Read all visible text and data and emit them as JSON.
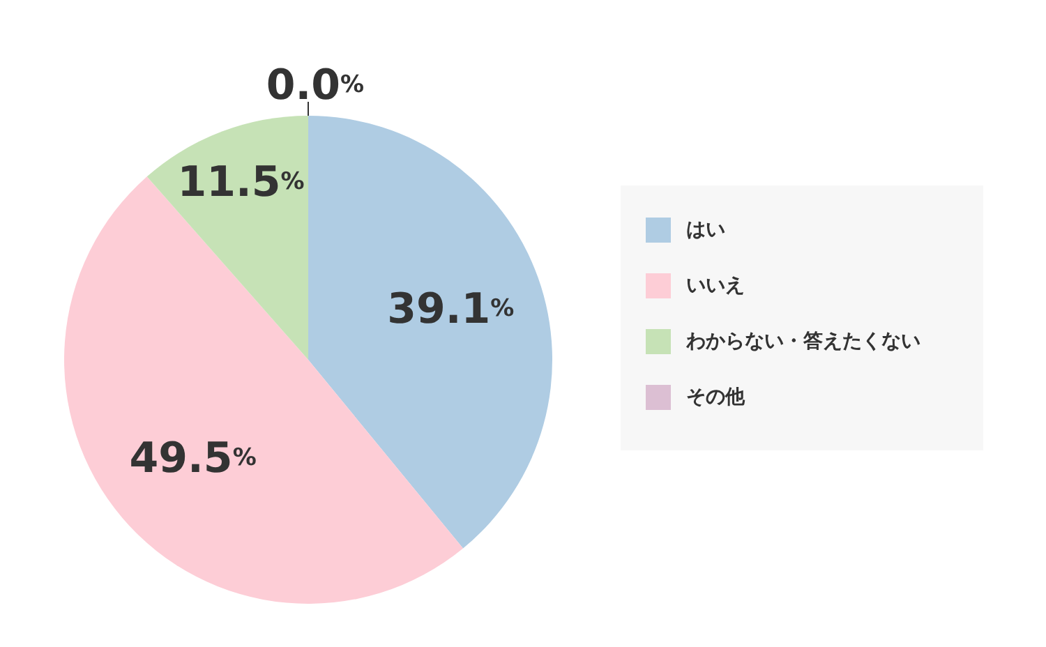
{
  "chart_data": {
    "type": "pie",
    "categories": [
      "はい",
      "いいえ",
      "わからない・答えたくない",
      "その他"
    ],
    "values": [
      39.1,
      49.5,
      11.5,
      0.0
    ],
    "value_labels": [
      "39.1%",
      "49.5%",
      "11.5%",
      "0.0%"
    ],
    "colors": [
      "#afcce3",
      "#fdcdd6",
      "#c6e2b6",
      "#dcbfd3"
    ],
    "legend": "right"
  }
}
